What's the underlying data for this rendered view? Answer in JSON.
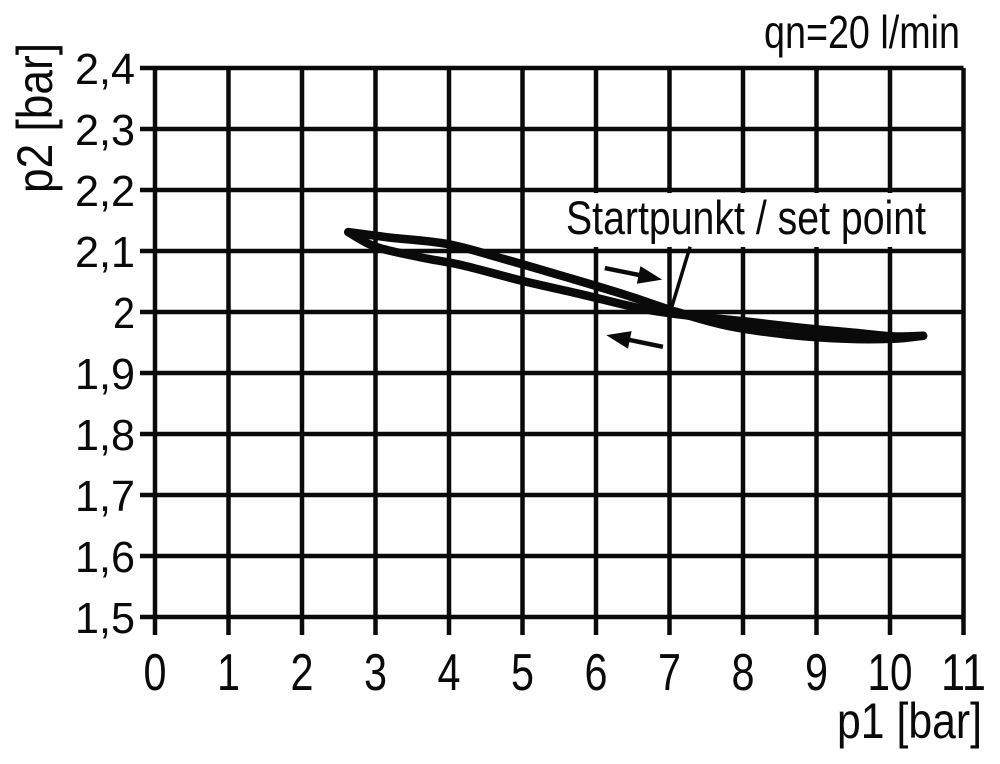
{
  "chart_data": {
    "type": "line",
    "title": "",
    "xlabel": "p1 [bar]",
    "ylabel": "p2 [bar]",
    "xlim": [
      0,
      11
    ],
    "ylim": [
      1.5,
      2.4
    ],
    "grid": true,
    "legend": "none",
    "x_ticks": {
      "values": [
        0,
        1,
        2,
        3,
        4,
        5,
        6,
        7,
        8,
        9,
        10,
        11
      ],
      "labels": [
        "0",
        "1",
        "2",
        "3",
        "4",
        "5",
        "6",
        "7",
        "8",
        "9",
        "10",
        "11"
      ]
    },
    "y_ticks": {
      "values": [
        2.4,
        2.3,
        2.2,
        2.1,
        2.0,
        1.9,
        1.8,
        1.7,
        1.6,
        1.5
      ],
      "labels": [
        "2,4",
        "2,3",
        "2,2",
        "2,1",
        "2",
        "1,9",
        "1,8",
        "1,7",
        "1,6",
        "1,5"
      ]
    },
    "series": [
      {
        "name": "hysteresis-branch-upper-left",
        "direction": "rightward",
        "x": [
          2.63,
          3.2,
          4.0,
          4.8,
          5.6,
          6.4,
          7.1,
          7.8,
          8.6,
          9.4,
          10.05,
          10.45
        ],
        "y": [
          2.131,
          2.122,
          2.111,
          2.085,
          2.057,
          2.028,
          2.0,
          1.977,
          1.963,
          1.956,
          1.956,
          1.961
        ]
      },
      {
        "name": "hysteresis-branch-lower-left",
        "direction": "leftward",
        "x": [
          2.63,
          3.0,
          3.6,
          4.2,
          5.0,
          5.8,
          6.6,
          7.2,
          8.0,
          8.8,
          9.6,
          10.05,
          10.45
        ],
        "y": [
          2.131,
          2.107,
          2.09,
          2.076,
          2.051,
          2.029,
          2.006,
          1.995,
          1.985,
          1.974,
          1.965,
          1.96,
          1.961
        ]
      }
    ],
    "arrows": [
      {
        "name": "direction-arrow-right",
        "tail": [
          6.12,
          2.072
        ],
        "tip": [
          6.9,
          2.053
        ]
      },
      {
        "name": "direction-arrow-left",
        "tail": [
          6.91,
          1.943
        ],
        "tip": [
          6.14,
          1.962
        ]
      }
    ],
    "annotations": {
      "flow_label": "qn=20 l/min",
      "set_point_label": "Startpunkt / set point",
      "set_point": [
        7.0,
        2.0
      ],
      "leader": {
        "from": [
          7.28,
          2.107
        ],
        "to": [
          7.02,
          2.004
        ]
      }
    },
    "colors": {
      "line": "#0a0a0a",
      "background": "#ffffff"
    }
  }
}
